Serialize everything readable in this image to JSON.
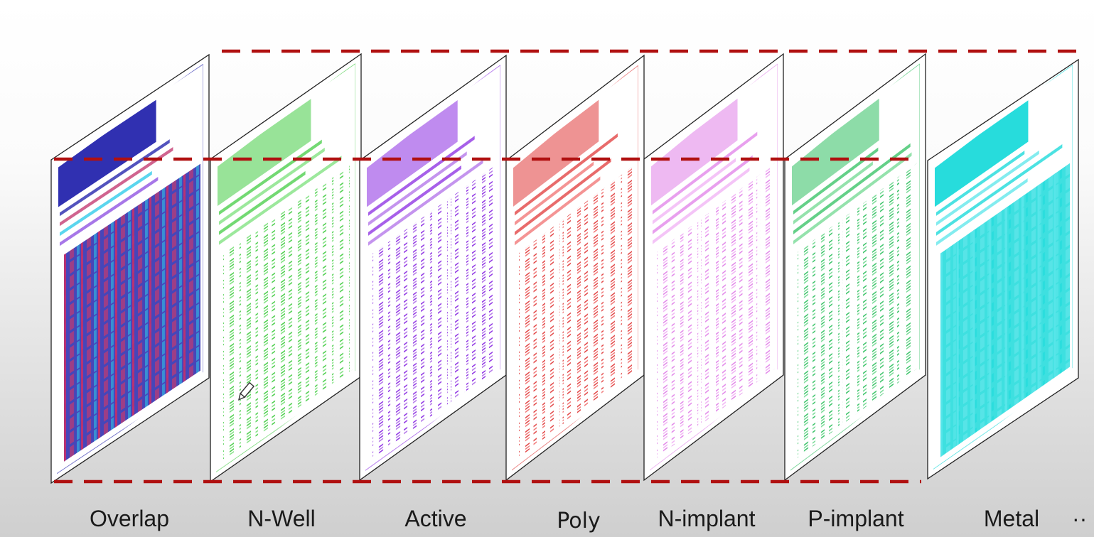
{
  "layers": [
    {
      "label": "Overlap",
      "palette": [
        "#1a1aa8",
        "#c0306a",
        "#24c8e8",
        "#8a4ae0"
      ],
      "mode": "dense"
    },
    {
      "label": "N-Well",
      "palette": [
        "#44cc44",
        "#7be07b"
      ],
      "mode": "pattern"
    },
    {
      "label": "Active",
      "palette": [
        "#8a2be2",
        "#b070e8"
      ],
      "mode": "pattern"
    },
    {
      "label": "Poly",
      "palette": [
        "#e03a3a",
        "#f07070"
      ],
      "mode": "pattern"
    },
    {
      "label": "N-implant",
      "palette": [
        "#e080e8",
        "#f0b0f4"
      ],
      "mode": "pattern"
    },
    {
      "label": "P-implant",
      "palette": [
        "#30c060",
        "#70d890"
      ],
      "mode": "pattern"
    },
    {
      "label": "Metal",
      "palette": [
        "#10d8d8",
        "#5ae6ea"
      ],
      "mode": "dense"
    }
  ],
  "ellipsis": "··",
  "dashed_outline_color": "#b01010",
  "cursor_icon": "pencil-cursor-icon"
}
